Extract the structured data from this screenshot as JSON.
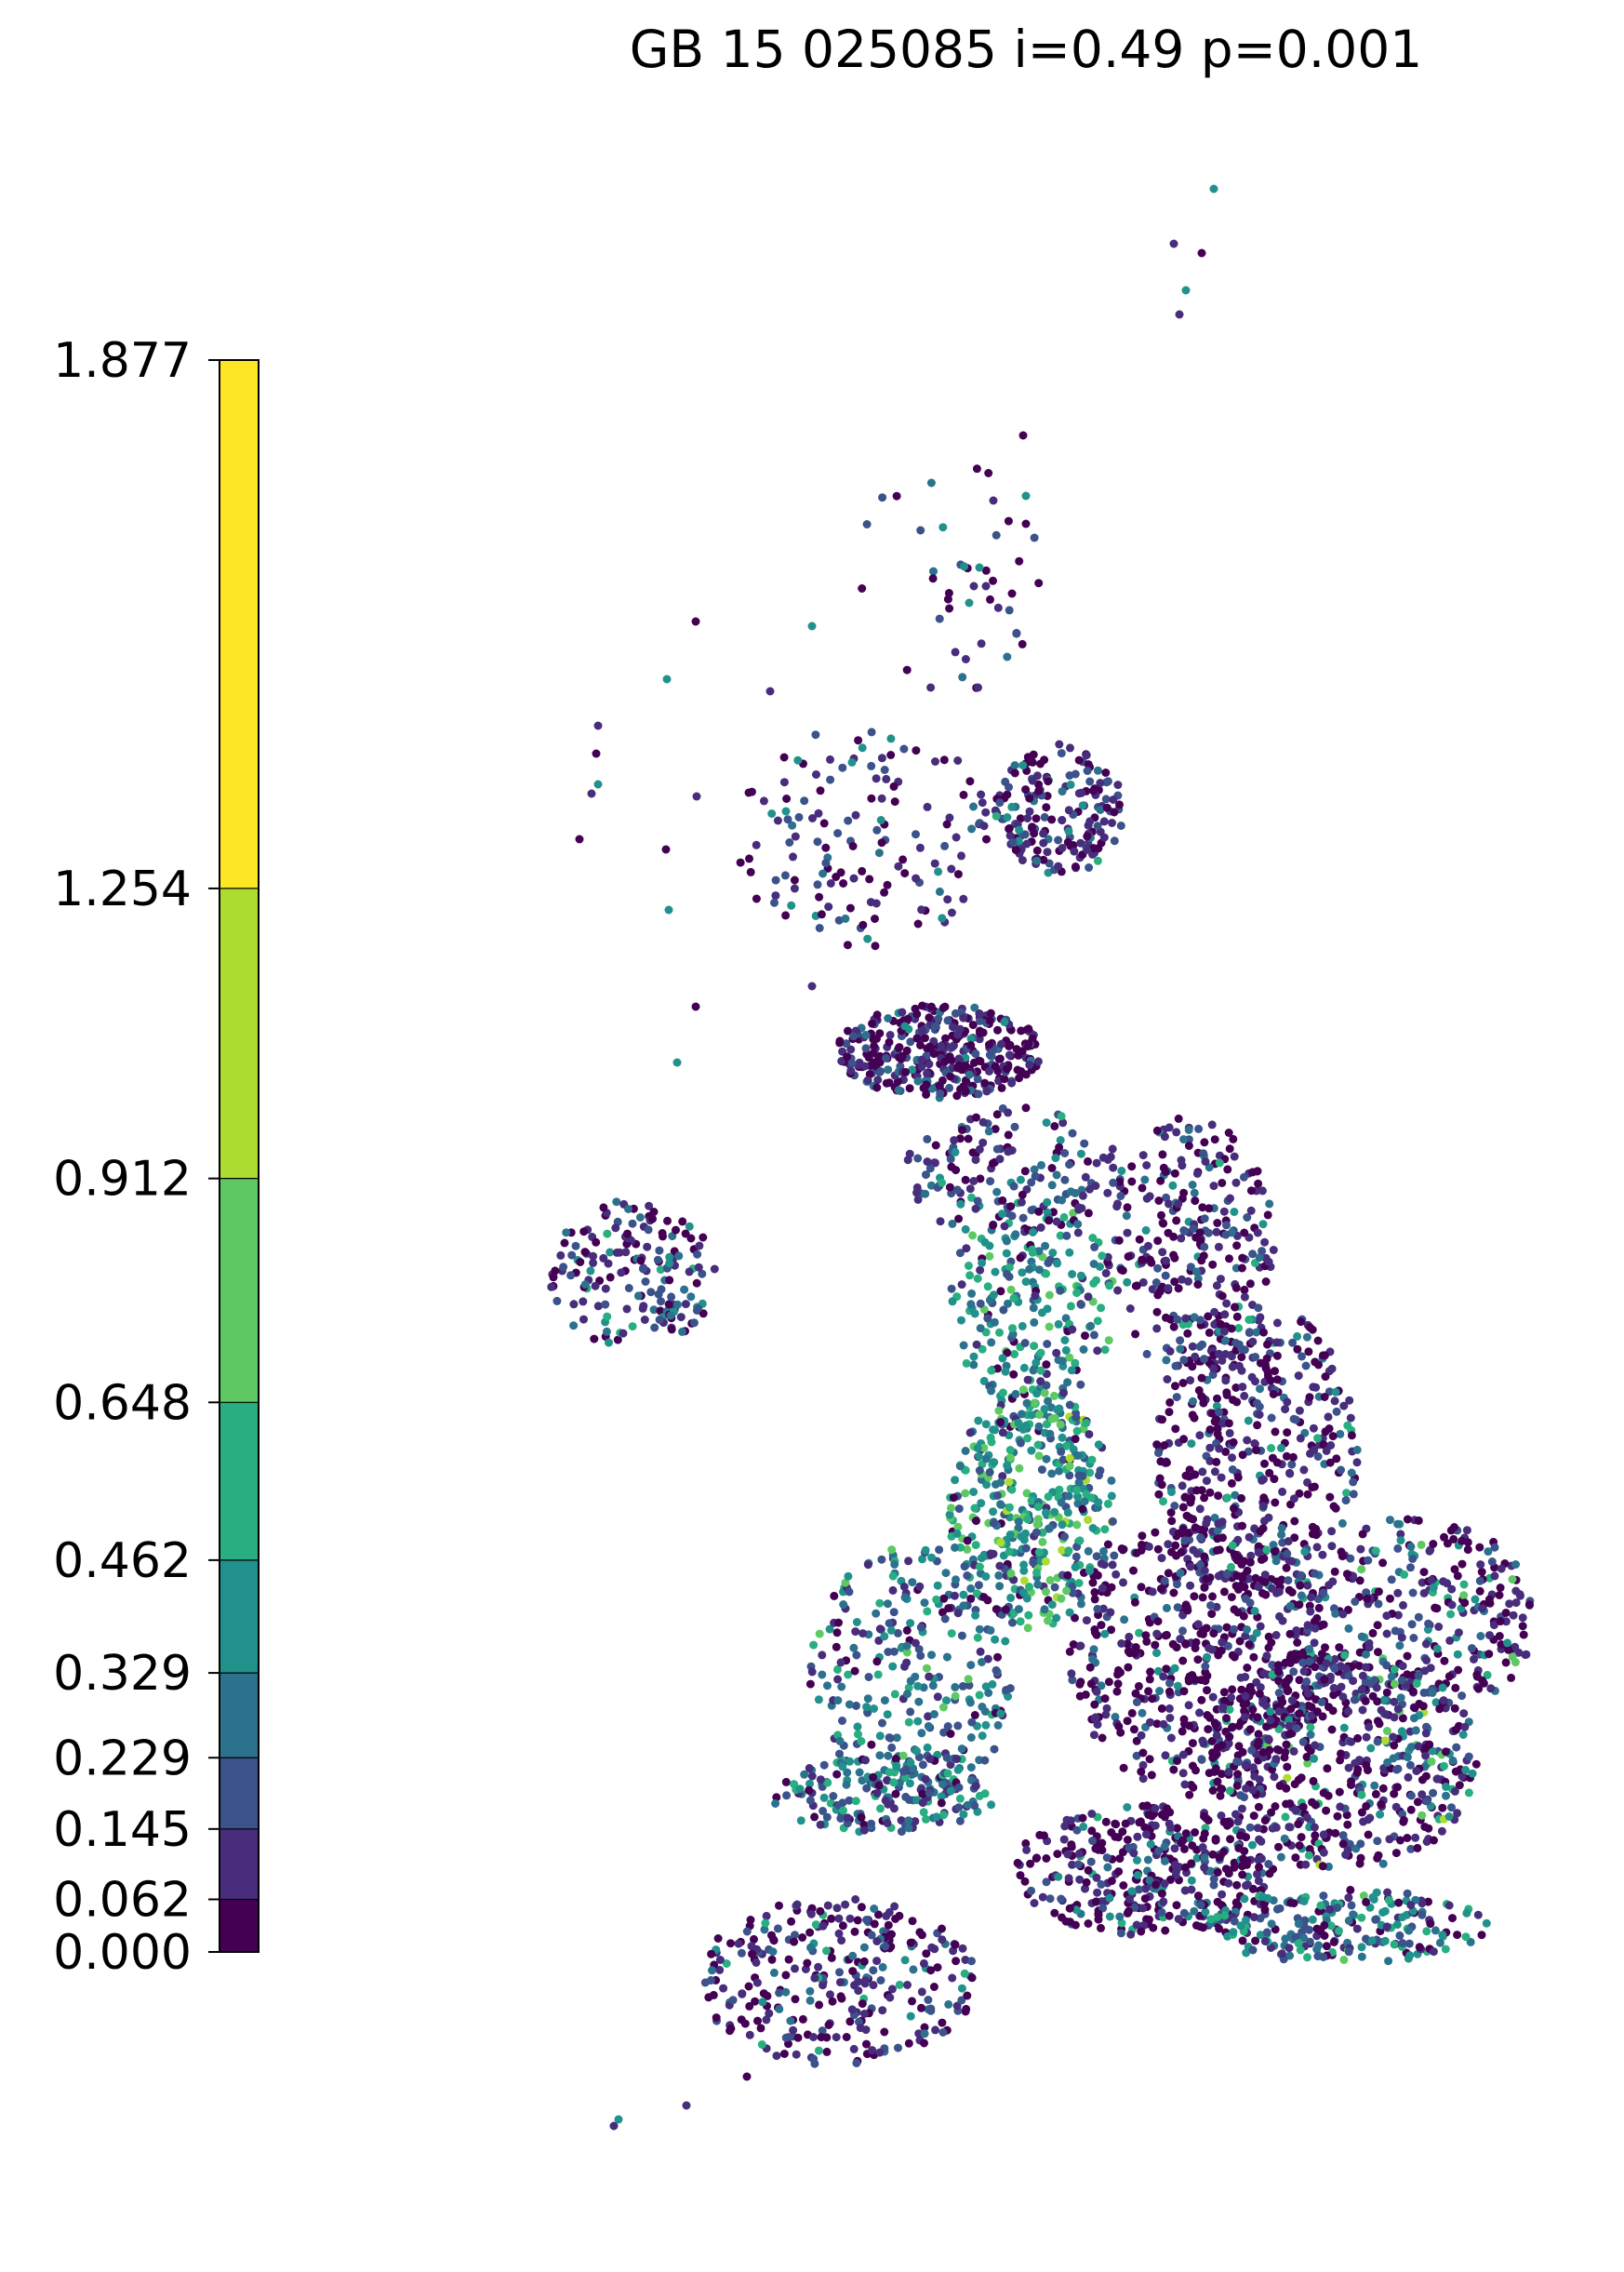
{
  "title": "GB 15 025085 i=0.49 p=0.001",
  "colorbar": {
    "ticks": [
      "0.000",
      "0.062",
      "0.145",
      "0.229",
      "0.329",
      "0.462",
      "0.648",
      "0.912",
      "1.254",
      "1.877"
    ],
    "values": [
      0.0,
      0.062,
      0.145,
      0.229,
      0.329,
      0.462,
      0.648,
      0.912,
      1.254,
      1.877
    ],
    "colors": [
      "#440154",
      "#472d7b",
      "#3b528b",
      "#2c728e",
      "#21918c",
      "#28ae80",
      "#5ec962",
      "#addc30",
      "#fde725"
    ],
    "orientation": "vertical",
    "placement": "left"
  },
  "chart_data": {
    "type": "scatter",
    "title": "GB 15 025085 i=0.49 p=0.001",
    "map": "Great Britain point map colored by classed value",
    "value_range": [
      0.0,
      1.877
    ],
    "class_breaks": [
      0.0,
      0.062,
      0.145,
      0.229,
      0.329,
      0.462,
      0.648,
      0.912,
      1.254,
      1.877
    ],
    "dominant_classes": {
      "South & East England": "0.000-0.145",
      "Wales borders / NW England": "0.462-1.254",
      "Scotland": "0.000-0.229",
      "Northern Ireland": "0.062-0.462"
    }
  }
}
